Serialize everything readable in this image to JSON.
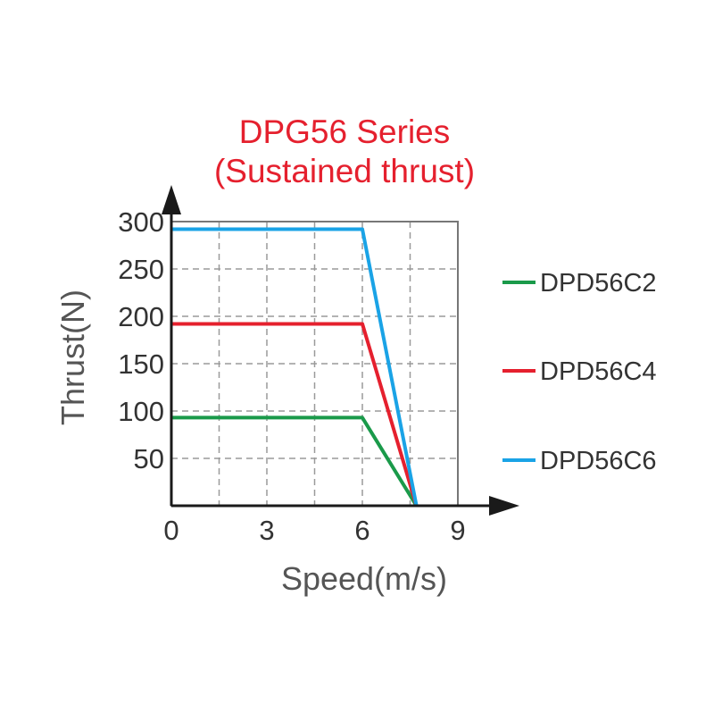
{
  "chart_data": {
    "type": "line",
    "title": [
      "DPG56 Series",
      "(Sustained thrust)"
    ],
    "xlabel": "Speed(m/s)",
    "ylabel": "Thrust(N)",
    "xlim": [
      0,
      9
    ],
    "ylim": [
      0,
      300
    ],
    "xticks": [
      "0",
      "3",
      "6",
      "9"
    ],
    "yticks": [
      "50",
      "100",
      "150",
      "200",
      "250",
      "300"
    ],
    "grid": true,
    "legend_position": "right",
    "series": [
      {
        "name": "DPD56C2",
        "color": "#1a9a4a",
        "x": [
          0,
          6,
          7.7
        ],
        "y": [
          93,
          93,
          0
        ]
      },
      {
        "name": "DPD56C4",
        "color": "#e5202e",
        "x": [
          0,
          6,
          7.7
        ],
        "y": [
          192,
          192,
          0
        ]
      },
      {
        "name": "DPD56C6",
        "color": "#1aa3e6",
        "x": [
          0,
          6,
          7.7
        ],
        "y": [
          292,
          292,
          0
        ]
      }
    ]
  }
}
